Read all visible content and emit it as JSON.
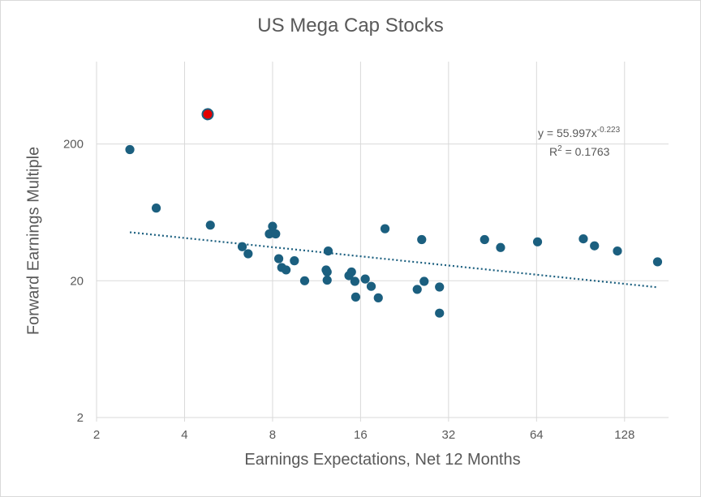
{
  "chart_data": {
    "type": "scatter",
    "title": "US Mega Cap Stocks",
    "xlabel": "Earnings Expectations, Net 12 Months",
    "ylabel": "Forward Earnings Multiple",
    "x_scale": "log2",
    "y_scale": "log10",
    "xlim": [
      2,
      181
    ],
    "ylim": [
      2,
      800
    ],
    "x_ticks": [
      "2",
      "4",
      "8",
      "16",
      "32",
      "64",
      "128"
    ],
    "y_ticks": [
      "2",
      "20",
      "200"
    ],
    "grid": true,
    "colors": {
      "points": "#1b5f7f",
      "highlight": "#e30000",
      "trendline": "#1b5f7f",
      "grid": "#d9d9d9",
      "text": "#595959"
    },
    "trendline": {
      "type": "power",
      "a": 55.997,
      "b": -0.223,
      "x_range": [
        2.6,
        166
      ]
    },
    "annotation": {
      "equation_prefix": "y = 55.997x",
      "equation_exp": "-0.223",
      "r2_prefix": "R",
      "r2_sup": "2",
      "r2_suffix": " = 0.1763"
    },
    "highlight_point": {
      "x": 4.8,
      "y": 330
    },
    "points": [
      {
        "x": 2.6,
        "y": 182
      },
      {
        "x": 3.2,
        "y": 68
      },
      {
        "x": 4.9,
        "y": 51
      },
      {
        "x": 6.3,
        "y": 35.5
      },
      {
        "x": 6.6,
        "y": 31.5
      },
      {
        "x": 7.8,
        "y": 44
      },
      {
        "x": 8.0,
        "y": 50
      },
      {
        "x": 8.2,
        "y": 44
      },
      {
        "x": 8.4,
        "y": 29
      },
      {
        "x": 8.6,
        "y": 25
      },
      {
        "x": 8.9,
        "y": 24
      },
      {
        "x": 9.5,
        "y": 28
      },
      {
        "x": 10.3,
        "y": 20
      },
      {
        "x": 12.2,
        "y": 24
      },
      {
        "x": 12.3,
        "y": 23.2
      },
      {
        "x": 12.3,
        "y": 20.2
      },
      {
        "x": 12.4,
        "y": 33
      },
      {
        "x": 14.6,
        "y": 21.8
      },
      {
        "x": 14.9,
        "y": 23.2
      },
      {
        "x": 15.3,
        "y": 19.8
      },
      {
        "x": 15.4,
        "y": 15.2
      },
      {
        "x": 16.6,
        "y": 20.6
      },
      {
        "x": 17.4,
        "y": 18.2
      },
      {
        "x": 18.4,
        "y": 15.0
      },
      {
        "x": 19.4,
        "y": 48
      },
      {
        "x": 25.0,
        "y": 17.3
      },
      {
        "x": 25.9,
        "y": 40
      },
      {
        "x": 26.4,
        "y": 19.8
      },
      {
        "x": 29.8,
        "y": 18.0
      },
      {
        "x": 29.8,
        "y": 11.6
      },
      {
        "x": 42.5,
        "y": 40
      },
      {
        "x": 48.2,
        "y": 35
      },
      {
        "x": 64.5,
        "y": 38.5
      },
      {
        "x": 92.5,
        "y": 40.5
      },
      {
        "x": 101,
        "y": 36
      },
      {
        "x": 121,
        "y": 33
      },
      {
        "x": 166,
        "y": 27.5
      }
    ]
  }
}
